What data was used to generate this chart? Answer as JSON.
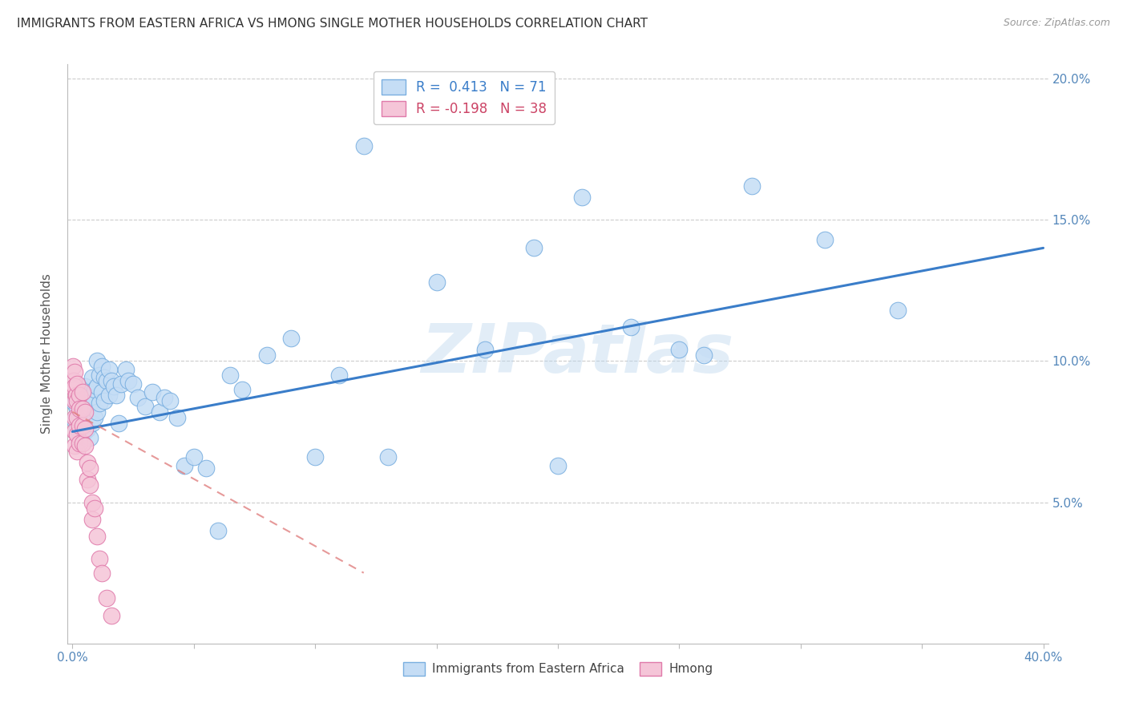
{
  "title": "IMMIGRANTS FROM EASTERN AFRICA VS HMONG SINGLE MOTHER HOUSEHOLDS CORRELATION CHART",
  "source": "Source: ZipAtlas.com",
  "ylabel": "Single Mother Households",
  "xlim": [
    -0.002,
    0.402
  ],
  "ylim": [
    0.0,
    0.205
  ],
  "xtick_positions": [
    0.0,
    0.05,
    0.1,
    0.15,
    0.2,
    0.25,
    0.3,
    0.35,
    0.4
  ],
  "ytick_positions": [
    0.05,
    0.1,
    0.15,
    0.2
  ],
  "blue_R": 0.413,
  "blue_N": 71,
  "pink_R": -0.198,
  "pink_N": 38,
  "blue_fill": "#c5ddf5",
  "blue_edge": "#7aafe0",
  "pink_fill": "#f5c5d8",
  "pink_edge": "#e07aaa",
  "blue_line_color": "#3a7dc9",
  "pink_line_color": "#e08080",
  "watermark": "ZIPatlas",
  "blue_line_x0": 0.0,
  "blue_line_y0": 0.075,
  "blue_line_x1": 0.4,
  "blue_line_y1": 0.14,
  "pink_line_x0": 0.0,
  "pink_line_y0": 0.082,
  "pink_line_x1": 0.12,
  "pink_line_y1": 0.025,
  "blue_points_x": [
    0.001,
    0.001,
    0.002,
    0.002,
    0.003,
    0.003,
    0.003,
    0.004,
    0.004,
    0.005,
    0.005,
    0.005,
    0.006,
    0.006,
    0.007,
    0.007,
    0.008,
    0.008,
    0.008,
    0.009,
    0.009,
    0.01,
    0.01,
    0.01,
    0.011,
    0.011,
    0.012,
    0.012,
    0.013,
    0.013,
    0.014,
    0.015,
    0.015,
    0.016,
    0.017,
    0.018,
    0.019,
    0.02,
    0.022,
    0.023,
    0.025,
    0.027,
    0.03,
    0.033,
    0.036,
    0.038,
    0.04,
    0.043,
    0.046,
    0.05,
    0.055,
    0.06,
    0.065,
    0.07,
    0.08,
    0.09,
    0.1,
    0.11,
    0.12,
    0.13,
    0.15,
    0.17,
    0.19,
    0.21,
    0.23,
    0.25,
    0.28,
    0.31,
    0.34,
    0.2,
    0.26
  ],
  "blue_points_y": [
    0.079,
    0.085,
    0.076,
    0.083,
    0.072,
    0.08,
    0.088,
    0.074,
    0.082,
    0.075,
    0.083,
    0.091,
    0.076,
    0.085,
    0.073,
    0.087,
    0.078,
    0.086,
    0.094,
    0.08,
    0.09,
    0.082,
    0.091,
    0.1,
    0.085,
    0.095,
    0.089,
    0.098,
    0.086,
    0.094,
    0.093,
    0.097,
    0.088,
    0.093,
    0.091,
    0.088,
    0.078,
    0.092,
    0.097,
    0.093,
    0.092,
    0.087,
    0.084,
    0.089,
    0.082,
    0.087,
    0.086,
    0.08,
    0.063,
    0.066,
    0.062,
    0.04,
    0.095,
    0.09,
    0.102,
    0.108,
    0.066,
    0.095,
    0.176,
    0.066,
    0.128,
    0.104,
    0.14,
    0.158,
    0.112,
    0.104,
    0.162,
    0.143,
    0.118,
    0.063,
    0.102
  ],
  "pink_points_x": [
    0.0003,
    0.0005,
    0.0008,
    0.001,
    0.001,
    0.001,
    0.001,
    0.001,
    0.001,
    0.0015,
    0.002,
    0.002,
    0.002,
    0.002,
    0.002,
    0.003,
    0.003,
    0.003,
    0.003,
    0.004,
    0.004,
    0.004,
    0.004,
    0.005,
    0.005,
    0.005,
    0.006,
    0.006,
    0.007,
    0.007,
    0.008,
    0.008,
    0.009,
    0.01,
    0.011,
    0.012,
    0.014,
    0.016
  ],
  "pink_points_y": [
    0.098,
    0.093,
    0.09,
    0.096,
    0.091,
    0.086,
    0.08,
    0.075,
    0.07,
    0.088,
    0.092,
    0.086,
    0.08,
    0.074,
    0.068,
    0.088,
    0.083,
    0.077,
    0.071,
    0.089,
    0.083,
    0.077,
    0.071,
    0.082,
    0.076,
    0.07,
    0.064,
    0.058,
    0.062,
    0.056,
    0.05,
    0.044,
    0.048,
    0.038,
    0.03,
    0.025,
    0.016,
    0.01
  ]
}
